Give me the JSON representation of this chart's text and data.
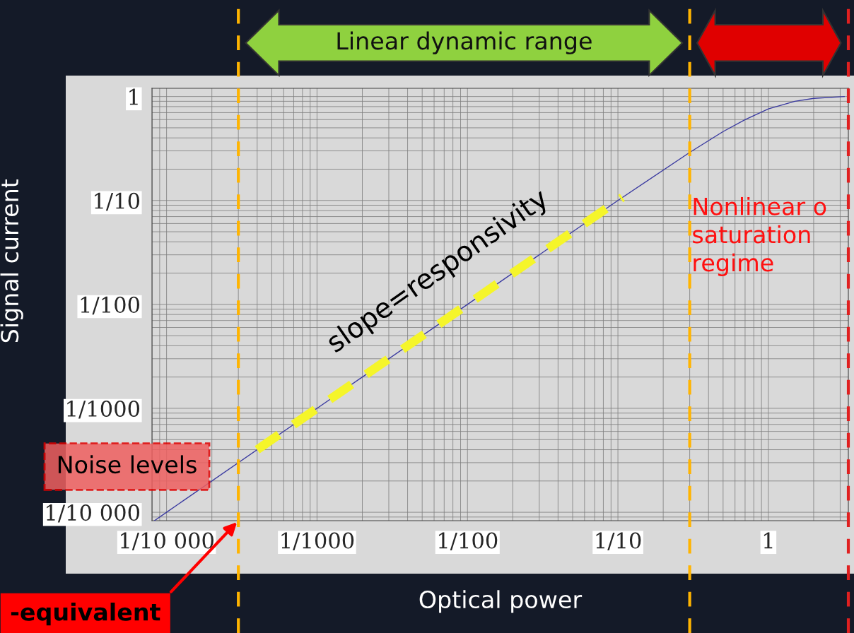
{
  "chart_data": {
    "type": "line",
    "xlabel": "Optical power",
    "ylabel": "Signal current",
    "log": "xy",
    "grid": true,
    "legend": false,
    "xlim": [
      8e-05,
      3.4
    ],
    "ylim": [
      8.3e-05,
      1.2
    ],
    "xticks": [
      {
        "value": 0.0001,
        "label": "1/10 000"
      },
      {
        "value": 0.001,
        "label": "1/1000"
      },
      {
        "value": 0.01,
        "label": "1/100"
      },
      {
        "value": 0.1,
        "label": "1/10"
      },
      1
    ],
    "yticks": [
      {
        "value": 0.0001,
        "label": "1/10 000"
      },
      {
        "value": 0.001,
        "label": "1/1000"
      },
      {
        "value": 0.01,
        "label": "1/100"
      },
      {
        "value": 0.1,
        "label": "1/10"
      },
      1
    ],
    "series": [
      {
        "type": "line",
        "color": "#3a3aa0",
        "line_style": "solid",
        "x": [
          8.3e-05,
          0.0001,
          0.001,
          0.01,
          0.1,
          0.3,
          0.5,
          0.7,
          1,
          1.5,
          2,
          3.2
        ],
        "values": [
          8.3e-05,
          0.0001,
          0.001,
          0.01,
          0.1,
          0.29,
          0.46,
          0.6,
          0.76,
          0.9,
          0.96,
          1.0
        ]
      },
      {
        "type": "line",
        "color": "#f5f52a",
        "line_style": "dashed",
        "x": [
          0.0004,
          0.107
        ],
        "values": [
          0.0004,
          0.107
        ]
      }
    ],
    "ref_lines": [
      {
        "axis": "x",
        "value": 0.0003,
        "label": null,
        "color": "#ffb400",
        "line_style": "dashed"
      },
      {
        "axis": "x",
        "value": 0.3,
        "label": null,
        "color": "#ffb400",
        "line_style": "dashed"
      },
      {
        "axis": "x",
        "value": 3.4,
        "label": null,
        "color": "#e02020",
        "line_style": "dashed"
      }
    ],
    "annotations": [
      "slope=responsivity",
      "Noise levels",
      "Nonlinear o\nsaturation\nregime",
      "-equivalent",
      "Linear dynamic range"
    ]
  }
}
